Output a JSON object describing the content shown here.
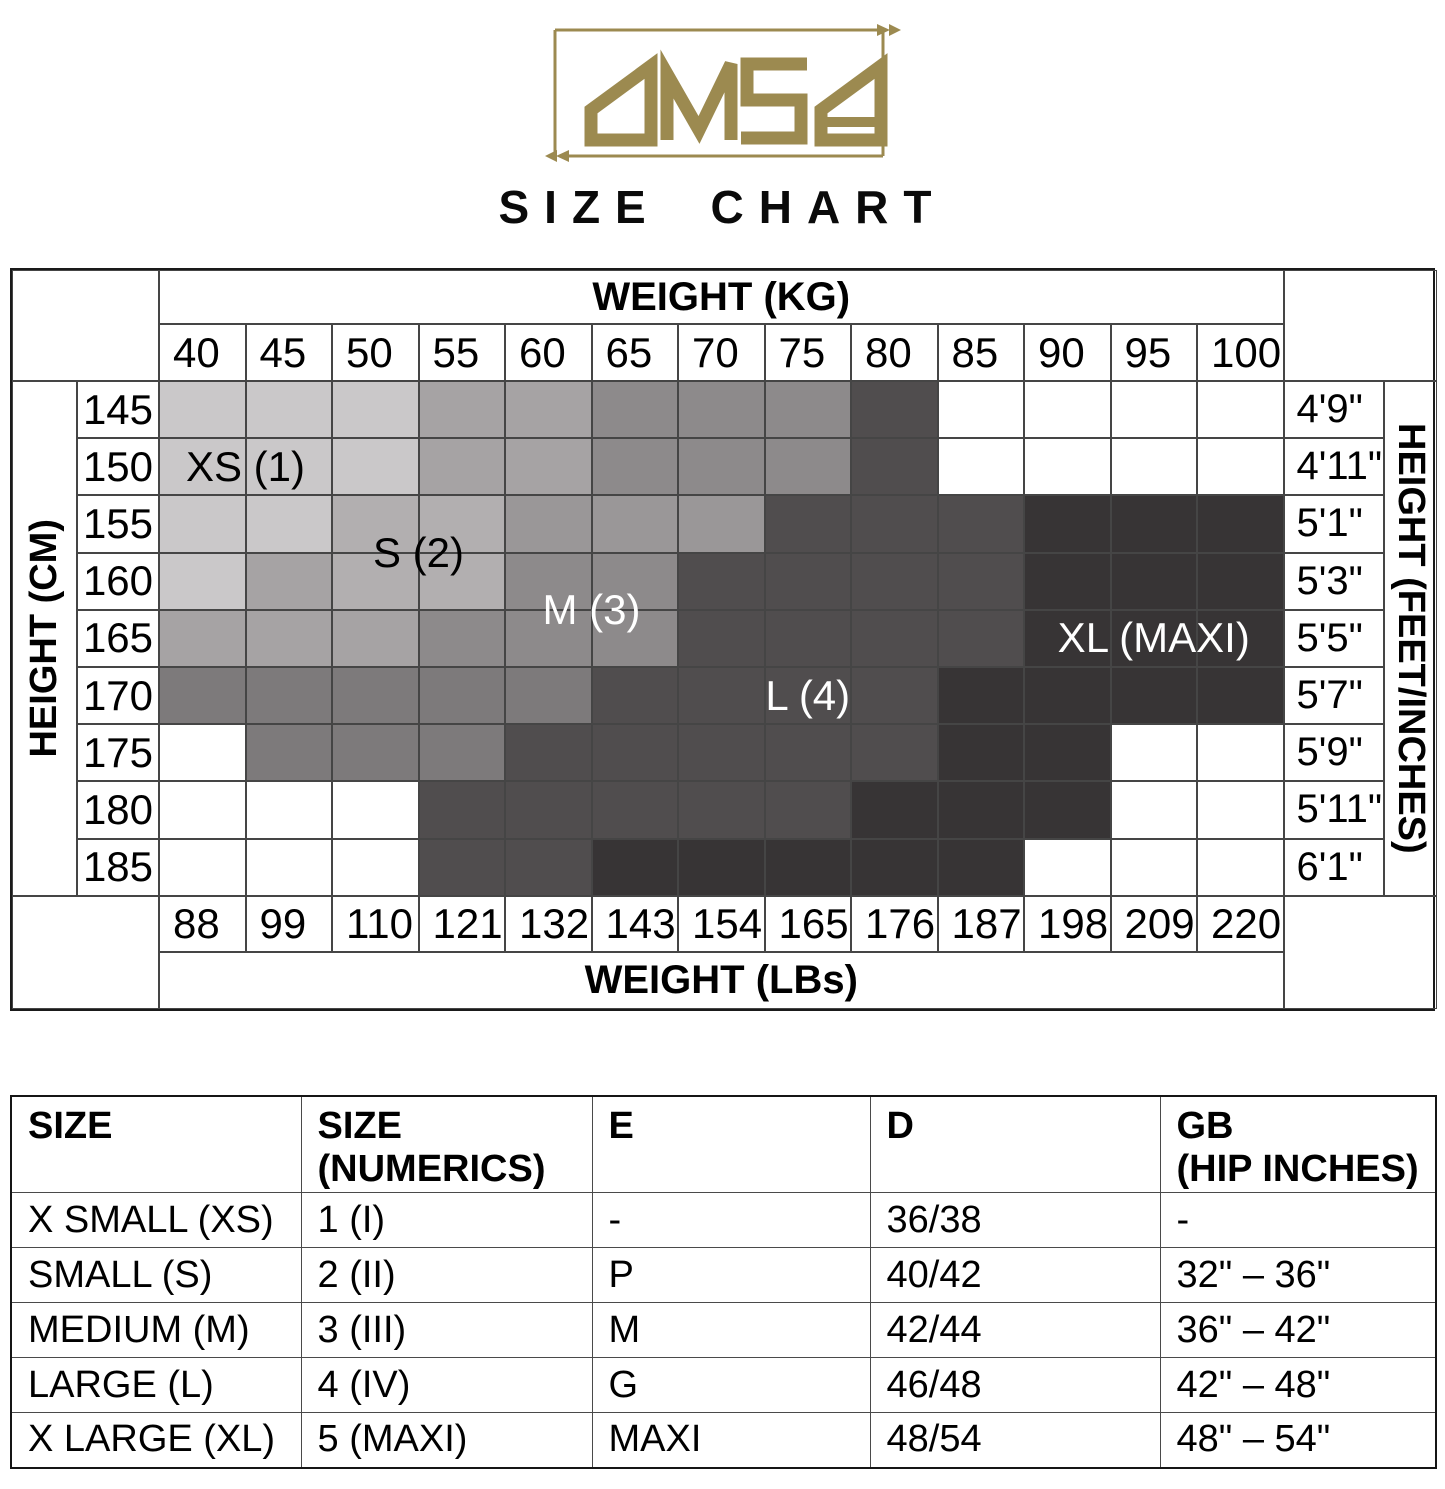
{
  "brand": {
    "logo_text": "OMSA",
    "subtitle": "SIZE CHART",
    "logo_color": "#9c8a50"
  },
  "size_grid": {
    "top_axis_label": "WEIGHT (KG)",
    "bottom_axis_label": "WEIGHT (LBs)",
    "left_axis_label": "HEIGHT (CM)",
    "right_axis_label": "HEIGHT (FEET/INCHES)",
    "weights_kg": [
      "40",
      "45",
      "50",
      "55",
      "60",
      "65",
      "70",
      "75",
      "80",
      "85",
      "90",
      "95",
      "100"
    ],
    "weights_lbs": [
      "88",
      "99",
      "110",
      "121",
      "132",
      "143",
      "154",
      "165",
      "176",
      "187",
      "198",
      "209",
      "220"
    ],
    "heights_cm": [
      "145",
      "150",
      "155",
      "160",
      "165",
      "170",
      "175",
      "180",
      "185"
    ],
    "heights_ftin": [
      "4'9\"",
      "4'11\"",
      "5'1\"",
      "5'3\"",
      "5'5\"",
      "5'7\"",
      "5'9\"",
      "5'11\"",
      "6'1\""
    ],
    "palette": {
      "w": "#ffffff",
      "xs": "#cac8c9",
      "s": "#b2afb0",
      "s2": "#a6a3a4",
      "m2": "#9a9798",
      "m": "#8d8a8b",
      "ml": "#7d7a7b",
      "l": "#504d4e",
      "xl": "#373435"
    },
    "cells": [
      [
        "xs",
        "xs",
        "xs",
        "s2",
        "s2",
        "m",
        "m",
        "m",
        "l",
        "w",
        "w",
        "w",
        "w"
      ],
      [
        "xs",
        "xs",
        "xs",
        "s2",
        "s2",
        "m",
        "m",
        "m",
        "l",
        "w",
        "w",
        "w",
        "w"
      ],
      [
        "xs",
        "xs",
        "s",
        "s",
        "m2",
        "m2",
        "m2",
        "l",
        "l",
        "l",
        "xl",
        "xl",
        "xl"
      ],
      [
        "xs",
        "s2",
        "s",
        "s",
        "m",
        "m",
        "l",
        "l",
        "l",
        "l",
        "xl",
        "xl",
        "xl"
      ],
      [
        "s2",
        "s2",
        "s2",
        "m",
        "m",
        "m",
        "l",
        "l",
        "l",
        "l",
        "xl",
        "xl",
        "xl"
      ],
      [
        "ml",
        "ml",
        "ml",
        "ml",
        "ml",
        "l",
        "l",
        "l",
        "l",
        "xl",
        "xl",
        "xl",
        "xl"
      ],
      [
        "w",
        "ml",
        "ml",
        "ml",
        "l",
        "l",
        "l",
        "l",
        "l",
        "xl",
        "xl",
        "w",
        "w"
      ],
      [
        "w",
        "w",
        "w",
        "l",
        "l",
        "l",
        "l",
        "l",
        "xl",
        "xl",
        "xl",
        "w",
        "w"
      ],
      [
        "w",
        "w",
        "w",
        "l",
        "l",
        "xl",
        "xl",
        "xl",
        "xl",
        "xl",
        "w",
        "w",
        "w"
      ]
    ],
    "zone_labels": [
      {
        "text": "XS (1)",
        "color": "#000000",
        "col": 1.0,
        "row": 1.5
      },
      {
        "text": "S (2)",
        "color": "#000000",
        "col": 3.0,
        "row": 3.0
      },
      {
        "text": "M (3)",
        "color": "#ffffff",
        "col": 5.0,
        "row": 4.0
      },
      {
        "text": "L (4)",
        "color": "#ffffff",
        "col": 7.5,
        "row": 5.5
      },
      {
        "text": "XL (MAXI)",
        "color": "#ffffff",
        "col": 11.5,
        "row": 4.5
      }
    ]
  },
  "conversion_table": {
    "headers": [
      "SIZE",
      "SIZE\n(NUMERICS)",
      "E",
      "D",
      "GB\n(HIP INCHES)"
    ],
    "rows": [
      [
        "X SMALL (XS)",
        "1 (I)",
        "-",
        "36/38",
        "-"
      ],
      [
        "SMALL (S)",
        "2 (II)",
        "P",
        "40/42",
        "32\" – 36\""
      ],
      [
        "MEDIUM (M)",
        "3 (III)",
        "M",
        "42/44",
        "36\" – 42\""
      ],
      [
        "LARGE (L)",
        "4 (IV)",
        "G",
        "46/48",
        "42\" – 48\""
      ],
      [
        "X LARGE (XL)",
        "5 (MAXI)",
        "MAXI",
        "48/54",
        "48\" – 54\""
      ]
    ]
  },
  "chart_data": [
    {
      "type": "heatmap",
      "title": "OMSA SIZE CHART",
      "x_top_label": "WEIGHT (KG)",
      "x_top_ticks": [
        40,
        45,
        50,
        55,
        60,
        65,
        70,
        75,
        80,
        85,
        90,
        95,
        100
      ],
      "x_bottom_label": "WEIGHT (LBs)",
      "x_bottom_ticks": [
        88,
        99,
        110,
        121,
        132,
        143,
        154,
        165,
        176,
        187,
        198,
        209,
        220
      ],
      "y_left_label": "HEIGHT (CM)",
      "y_left_ticks": [
        145,
        150,
        155,
        160,
        165,
        170,
        175,
        180,
        185
      ],
      "y_right_label": "HEIGHT (FEET/INCHES)",
      "y_right_ticks": [
        "4'9\"",
        "4'11\"",
        "5'1\"",
        "5'3\"",
        "5'5\"",
        "5'7\"",
        "5'9\"",
        "5'11\"",
        "6'1\""
      ],
      "legend": [
        "XS (1)",
        "S (2)",
        "M (3)",
        "L (4)",
        "XL (MAXI)"
      ],
      "zones_by_row": [
        [
          "xs",
          "xs",
          "xs",
          "s",
          "s",
          "m",
          "m",
          "m",
          "l",
          "-",
          "-",
          "-",
          "-"
        ],
        [
          "xs",
          "xs",
          "xs",
          "s",
          "s",
          "m",
          "m",
          "m",
          "l",
          "-",
          "-",
          "-",
          "-"
        ],
        [
          "xs",
          "xs",
          "s",
          "s",
          "m",
          "m",
          "m",
          "l",
          "l",
          "l",
          "xl",
          "xl",
          "xl"
        ],
        [
          "xs",
          "s",
          "s",
          "s",
          "m",
          "m",
          "l",
          "l",
          "l",
          "l",
          "xl",
          "xl",
          "xl"
        ],
        [
          "s",
          "s",
          "s",
          "m",
          "m",
          "m",
          "l",
          "l",
          "l",
          "l",
          "xl",
          "xl",
          "xl"
        ],
        [
          "m",
          "m",
          "m",
          "m",
          "m",
          "l",
          "l",
          "l",
          "l",
          "xl",
          "xl",
          "xl",
          "xl"
        ],
        [
          "-",
          "m",
          "m",
          "m",
          "l",
          "l",
          "l",
          "l",
          "l",
          "xl",
          "xl",
          "-",
          "-"
        ],
        [
          "-",
          "-",
          "-",
          "l",
          "l",
          "l",
          "l",
          "l",
          "xl",
          "xl",
          "xl",
          "-",
          "-"
        ],
        [
          "-",
          "-",
          "-",
          "l",
          "l",
          "xl",
          "xl",
          "xl",
          "xl",
          "xl",
          "-",
          "-",
          "-"
        ]
      ]
    },
    {
      "type": "table",
      "columns": [
        "SIZE",
        "SIZE (NUMERICS)",
        "E",
        "D",
        "GB (HIP INCHES)"
      ],
      "rows": [
        [
          "X SMALL (XS)",
          "1 (I)",
          "-",
          "36/38",
          "-"
        ],
        [
          "SMALL (S)",
          "2 (II)",
          "P",
          "40/42",
          "32\" – 36\""
        ],
        [
          "MEDIUM (M)",
          "3 (III)",
          "M",
          "42/44",
          "36\" – 42\""
        ],
        [
          "LARGE (L)",
          "4 (IV)",
          "G",
          "46/48",
          "42\" – 48\""
        ],
        [
          "X LARGE (XL)",
          "5 (MAXI)",
          "MAXI",
          "48/54",
          "48\" – 54\""
        ]
      ]
    }
  ]
}
